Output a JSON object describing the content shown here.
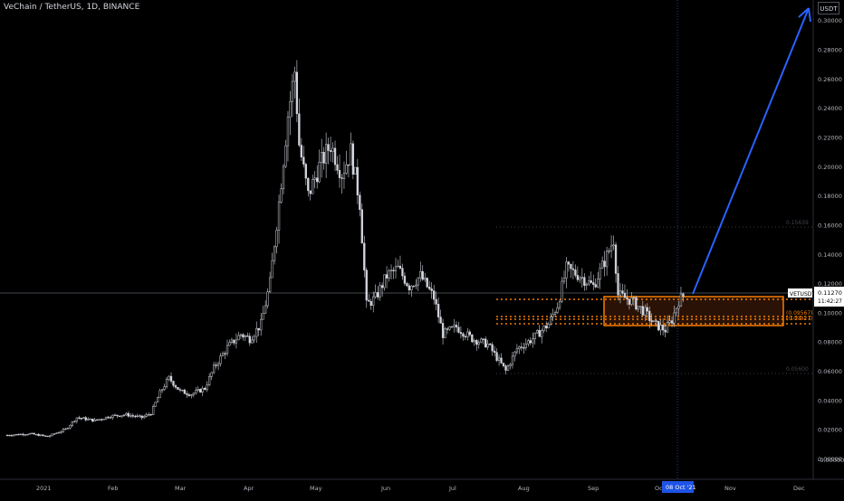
{
  "header": {
    "title": "VeChain / TetherUS, 1D, BINANCE",
    "currency": "USDT"
  },
  "price_scale": {
    "labels": [
      "0.30000",
      "0.28000",
      "0.26000",
      "0.24000",
      "0.22000",
      "0.20000",
      "0.18000",
      "0.16000",
      "0.14000",
      "0.12000",
      "0.10000",
      "0.08000",
      "0.06000",
      "0.04000",
      "0.02000",
      "0.00000",
      "-0.00000"
    ]
  },
  "price_tag": {
    "symbol": "VETUSDT",
    "price": "0.11270",
    "countdown": "11:42:27"
  },
  "time_scale": {
    "labels": [
      "2021",
      "Feb",
      "Mar",
      "Apr",
      "May",
      "Jun",
      "Jul",
      "Aug",
      "Sep",
      "Oc",
      "Nov",
      "Dec"
    ],
    "crosshair_date": "08 Oct '21"
  },
  "annotations": {
    "zone_label_a": "(0.09567)",
    "zone_label_b": "(0.09427)",
    "fib_upper": "0.15639",
    "fib_lower": "0.05600"
  },
  "colors": {
    "background": "#000000",
    "candle": "#d1d4dc",
    "arrow": "#2962ff",
    "zone_border": "#f57c00",
    "zone_fill": "#2a1306",
    "dotted_lines": "#f57c00",
    "crosshair_v": "#2962ff",
    "date_badge": "#1e53e5",
    "price_tag_bg": "#ffffff"
  },
  "chart_data": {
    "type": "candlestick",
    "title": "VeChain / TetherUS, 1D, BINANCE",
    "x_unit": "date",
    "y_unit": "USDT",
    "xlim": [
      "2020-12-08",
      "2021-12-25"
    ],
    "ylim": [
      -0.01,
      0.305
    ],
    "grid": false,
    "approximate_close": [
      [
        "2020-12-10",
        0.016
      ],
      [
        "2020-12-20",
        0.017
      ],
      [
        "2020-12-28",
        0.015
      ],
      [
        "2021-01-05",
        0.02
      ],
      [
        "2021-01-10",
        0.028
      ],
      [
        "2021-01-18",
        0.026
      ],
      [
        "2021-01-25",
        0.029
      ],
      [
        "2021-02-01",
        0.03
      ],
      [
        "2021-02-08",
        0.028
      ],
      [
        "2021-02-12",
        0.031
      ],
      [
        "2021-02-16",
        0.045
      ],
      [
        "2021-02-20",
        0.055
      ],
      [
        "2021-02-25",
        0.046
      ],
      [
        "2021-03-02",
        0.044
      ],
      [
        "2021-03-08",
        0.048
      ],
      [
        "2021-03-12",
        0.062
      ],
      [
        "2021-03-18",
        0.076
      ],
      [
        "2021-03-24",
        0.085
      ],
      [
        "2021-03-28",
        0.082
      ],
      [
        "2021-04-02",
        0.092
      ],
      [
        "2021-04-06",
        0.12
      ],
      [
        "2021-04-10",
        0.175
      ],
      [
        "2021-04-14",
        0.235
      ],
      [
        "2021-04-17",
        0.265
      ],
      [
        "2021-04-19",
        0.215
      ],
      [
        "2021-04-23",
        0.18
      ],
      [
        "2021-04-28",
        0.2
      ],
      [
        "2021-05-03",
        0.215
      ],
      [
        "2021-05-08",
        0.195
      ],
      [
        "2021-05-12",
        0.21
      ],
      [
        "2021-05-16",
        0.175
      ],
      [
        "2021-05-19",
        0.105
      ],
      [
        "2021-05-23",
        0.11
      ],
      [
        "2021-05-28",
        0.125
      ],
      [
        "2021-06-02",
        0.13
      ],
      [
        "2021-06-07",
        0.118
      ],
      [
        "2021-06-12",
        0.125
      ],
      [
        "2021-06-18",
        0.11
      ],
      [
        "2021-06-22",
        0.085
      ],
      [
        "2021-06-28",
        0.09
      ],
      [
        "2021-07-05",
        0.082
      ],
      [
        "2021-07-12",
        0.078
      ],
      [
        "2021-07-20",
        0.06
      ],
      [
        "2021-07-25",
        0.075
      ],
      [
        "2021-08-01",
        0.082
      ],
      [
        "2021-08-08",
        0.092
      ],
      [
        "2021-08-12",
        0.105
      ],
      [
        "2021-08-16",
        0.13
      ],
      [
        "2021-08-22",
        0.125
      ],
      [
        "2021-08-28",
        0.118
      ],
      [
        "2021-09-02",
        0.135
      ],
      [
        "2021-09-06",
        0.15
      ],
      [
        "2021-09-08",
        0.112
      ],
      [
        "2021-09-14",
        0.108
      ],
      [
        "2021-09-20",
        0.1
      ],
      [
        "2021-09-24",
        0.092
      ],
      [
        "2021-09-29",
        0.088
      ],
      [
        "2021-10-02",
        0.095
      ],
      [
        "2021-10-05",
        0.108
      ],
      [
        "2021-10-08",
        0.1127
      ]
    ],
    "zone": {
      "x0": "2021-09-08",
      "x1": "2021-12-10",
      "y0": 0.0905,
      "y1": 0.1095
    },
    "horizontal_levels": [
      0.1085,
      0.0957,
      0.0943,
      0.09
    ],
    "arrow": {
      "from": [
        "2021-10-14",
        0.111
      ],
      "to": [
        "2021-12-12",
        0.3065
      ]
    },
    "last_price": 0.1127
  }
}
